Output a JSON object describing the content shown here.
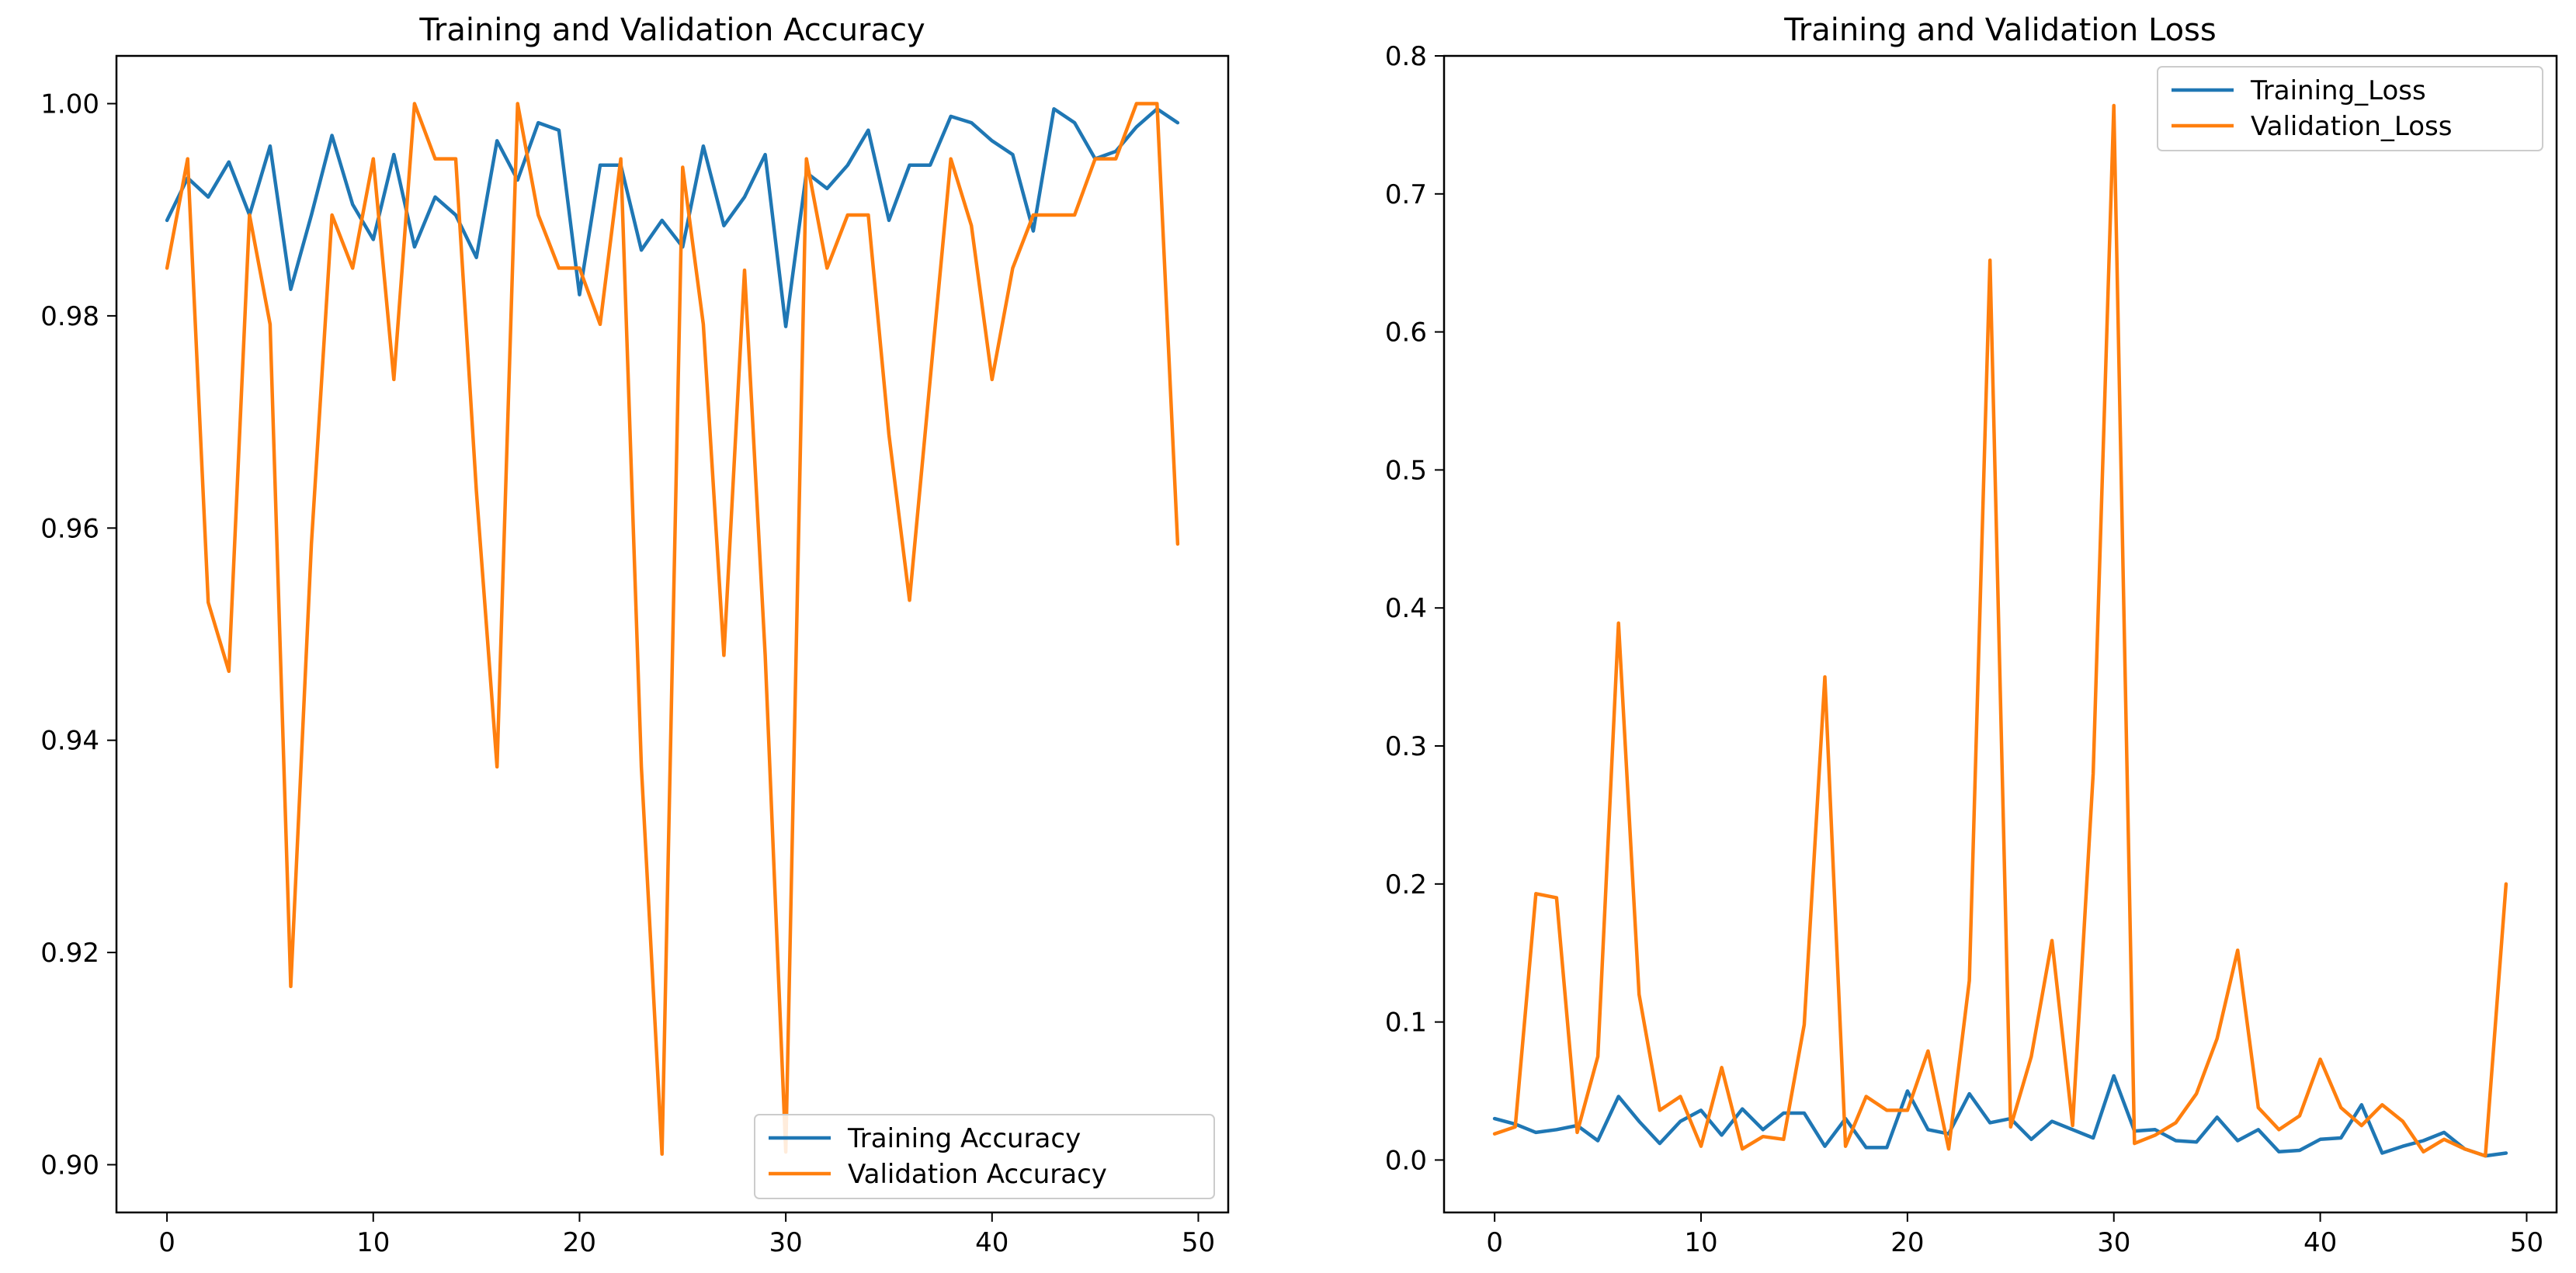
{
  "chart_data": [
    {
      "type": "line",
      "title": "Training and Validation Accuracy",
      "xlabel": "",
      "ylabel": "",
      "xlim": [
        -2.45,
        51.45
      ],
      "ylim": [
        0.8955,
        1.0045
      ],
      "xticks": [
        0,
        10,
        20,
        30,
        40,
        50
      ],
      "yticks": [
        0.9,
        0.92,
        0.94,
        0.96,
        0.98,
        1.0
      ],
      "ytick_labels": [
        "0.90",
        "0.92",
        "0.94",
        "0.96",
        "0.98",
        "1.00"
      ],
      "legend_position": "lower-right",
      "x": [
        0,
        1,
        2,
        3,
        4,
        5,
        6,
        7,
        8,
        9,
        10,
        11,
        12,
        13,
        14,
        15,
        16,
        17,
        18,
        19,
        20,
        21,
        22,
        23,
        24,
        25,
        26,
        27,
        28,
        29,
        30,
        31,
        32,
        33,
        34,
        35,
        36,
        37,
        38,
        39,
        40,
        41,
        42,
        43,
        44,
        45,
        46,
        47,
        48,
        49
      ],
      "series": [
        {
          "name": "Training Accuracy",
          "color": "#1f77b4",
          "values": [
            0.989,
            0.993,
            0.9912,
            0.9945,
            0.9895,
            0.996,
            0.9825,
            0.9895,
            0.997,
            0.9905,
            0.9872,
            0.9952,
            0.9865,
            0.9912,
            0.9895,
            0.9855,
            0.9965,
            0.9928,
            0.9982,
            0.9975,
            0.982,
            0.9942,
            0.9942,
            0.9862,
            0.989,
            0.9865,
            0.996,
            0.9885,
            0.9912,
            0.9952,
            0.979,
            0.9935,
            0.992,
            0.9942,
            0.9975,
            0.989,
            0.9942,
            0.9942,
            0.9988,
            0.9982,
            0.9965,
            0.9952,
            0.988,
            0.9995,
            0.9982,
            0.9948,
            0.9955,
            0.9978,
            0.9995,
            0.9982
          ]
        },
        {
          "name": "Validation Accuracy",
          "color": "#ff7f0e",
          "values": [
            0.9845,
            0.9948,
            0.953,
            0.9465,
            0.9895,
            0.9792,
            0.9168,
            0.9585,
            0.9895,
            0.9845,
            0.9948,
            0.974,
            1.0,
            0.9948,
            0.9948,
            0.9635,
            0.9375,
            1.0,
            0.9895,
            0.9845,
            0.9845,
            0.9792,
            0.9948,
            0.9375,
            0.901,
            0.994,
            0.9792,
            0.948,
            0.9843,
            0.948,
            0.9012,
            0.9948,
            0.9845,
            0.9895,
            0.9895,
            0.9688,
            0.9532,
            0.974,
            0.9948,
            0.9885,
            0.974,
            0.9845,
            0.9895,
            0.9895,
            0.9895,
            0.9948,
            0.9948,
            1.0,
            1.0,
            0.9585
          ]
        }
      ]
    },
    {
      "type": "line",
      "title": "Training and Validation Loss",
      "xlabel": "",
      "ylabel": "",
      "xlim": [
        -2.45,
        51.45
      ],
      "ylim": [
        -0.038,
        0.8
      ],
      "xticks": [
        0,
        10,
        20,
        30,
        40,
        50
      ],
      "yticks": [
        0.0,
        0.1,
        0.2,
        0.3,
        0.4,
        0.5,
        0.6,
        0.7,
        0.8
      ],
      "ytick_labels": [
        "0.0",
        "0.1",
        "0.2",
        "0.3",
        "0.4",
        "0.5",
        "0.6",
        "0.7",
        "0.8"
      ],
      "legend_position": "upper-right",
      "x": [
        0,
        1,
        2,
        3,
        4,
        5,
        6,
        7,
        8,
        9,
        10,
        11,
        12,
        13,
        14,
        15,
        16,
        17,
        18,
        19,
        20,
        21,
        22,
        23,
        24,
        25,
        26,
        27,
        28,
        29,
        30,
        31,
        32,
        33,
        34,
        35,
        36,
        37,
        38,
        39,
        40,
        41,
        42,
        43,
        44,
        45,
        46,
        47,
        48,
        49
      ],
      "series": [
        {
          "name": "Training_Loss",
          "color": "#1f77b4",
          "values": [
            0.03,
            0.026,
            0.02,
            0.022,
            0.025,
            0.014,
            0.046,
            0.028,
            0.012,
            0.028,
            0.036,
            0.018,
            0.037,
            0.022,
            0.034,
            0.034,
            0.01,
            0.03,
            0.009,
            0.009,
            0.05,
            0.022,
            0.019,
            0.048,
            0.027,
            0.03,
            0.015,
            0.028,
            0.022,
            0.016,
            0.061,
            0.021,
            0.022,
            0.014,
            0.013,
            0.031,
            0.014,
            0.022,
            0.006,
            0.007,
            0.015,
            0.016,
            0.04,
            0.005,
            0.01,
            0.014,
            0.02,
            0.008,
            0.003,
            0.005
          ]
        },
        {
          "name": "Validation_Loss",
          "color": "#ff7f0e",
          "values": [
            0.019,
            0.024,
            0.193,
            0.19,
            0.02,
            0.075,
            0.389,
            0.12,
            0.036,
            0.046,
            0.01,
            0.067,
            0.008,
            0.017,
            0.015,
            0.098,
            0.35,
            0.01,
            0.046,
            0.036,
            0.036,
            0.079,
            0.008,
            0.13,
            0.652,
            0.024,
            0.075,
            0.159,
            0.025,
            0.28,
            0.764,
            0.012,
            0.018,
            0.027,
            0.048,
            0.088,
            0.152,
            0.038,
            0.022,
            0.032,
            0.073,
            0.038,
            0.025,
            0.04,
            0.028,
            0.006,
            0.015,
            0.008,
            0.003,
            0.2
          ]
        }
      ]
    }
  ]
}
